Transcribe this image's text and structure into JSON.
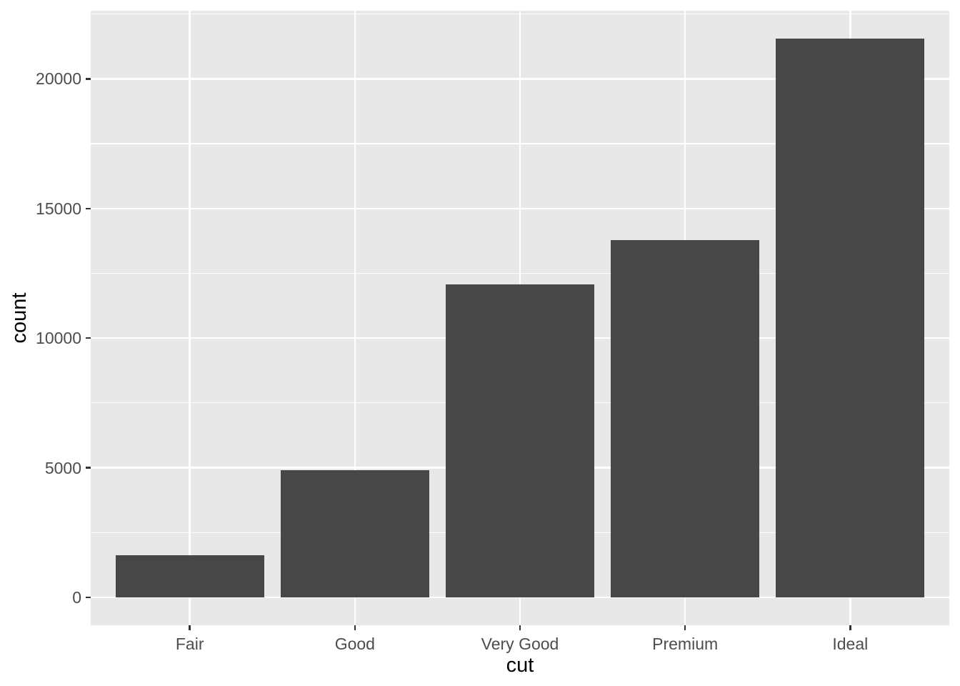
{
  "chart_data": {
    "type": "bar",
    "title": "",
    "xlabel": "cut",
    "ylabel": "count",
    "categories": [
      "Fair",
      "Good",
      "Very Good",
      "Premium",
      "Ideal"
    ],
    "values": [
      1610,
      4906,
      12082,
      13791,
      21551
    ],
    "ylim": [
      -1078,
      22629
    ],
    "yticks": [
      0,
      5000,
      10000,
      15000,
      20000
    ],
    "ytick_labels": [
      "0",
      "5000",
      "10000",
      "15000",
      "20000"
    ],
    "yminor": [
      2500,
      7500,
      12500,
      17500,
      22500
    ],
    "grid": true,
    "legend": false,
    "bar_width_fraction": 0.9,
    "colors": {
      "bar_fill": "#474747",
      "panel_background": "#E8E8E8",
      "major_gridline": "#FFFFFF",
      "minor_gridline": "#FFFFFF",
      "tick_mark": "#333333",
      "tick_label": "#4D4D4D",
      "axis_title": "#000000",
      "figure_background": "#FFFFFF"
    }
  }
}
